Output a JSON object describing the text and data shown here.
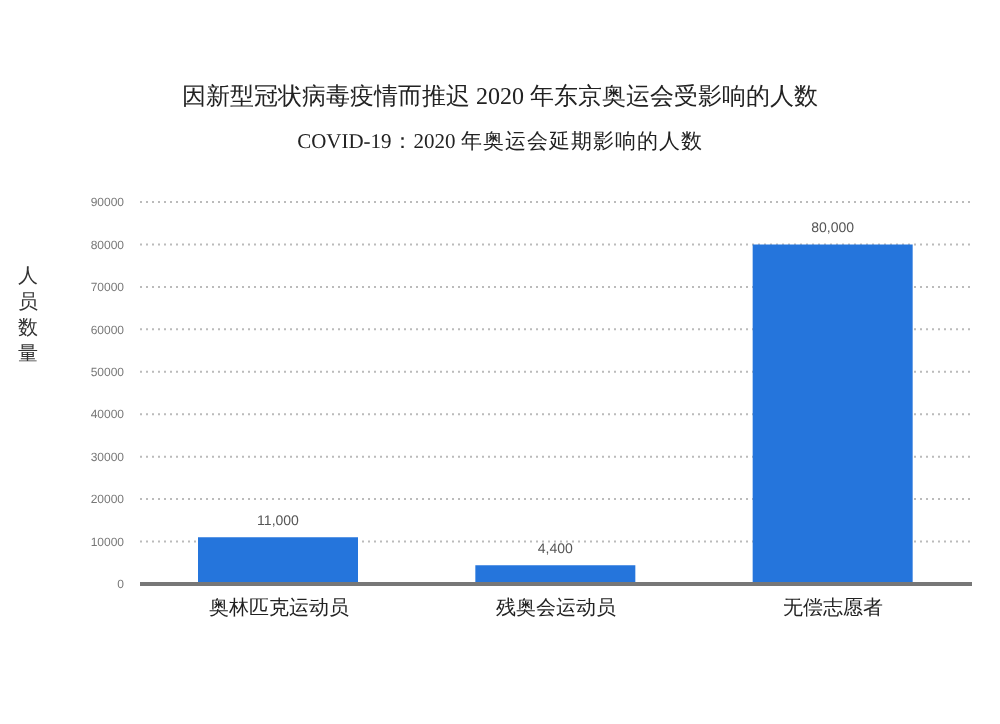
{
  "chart_data": {
    "type": "bar",
    "title": "因新型冠状病毒疫情而推迟 2020 年东京奥运会受影响的人数",
    "subtitle": "COVID-19：2020 年奥运会延期影响的人数",
    "ylabel": "人员数量",
    "categories": [
      "奥林匹克运动员",
      "残奥会运动员",
      "无偿志愿者"
    ],
    "values": [
      11000,
      4400,
      80000
    ],
    "value_labels": [
      "11,000",
      "4,400",
      "80,000"
    ],
    "color": "#2575dc",
    "ylim": [
      0,
      90000
    ],
    "yticks": [
      0,
      10000,
      20000,
      30000,
      40000,
      50000,
      60000,
      70000,
      80000,
      90000
    ],
    "grid": "y"
  }
}
